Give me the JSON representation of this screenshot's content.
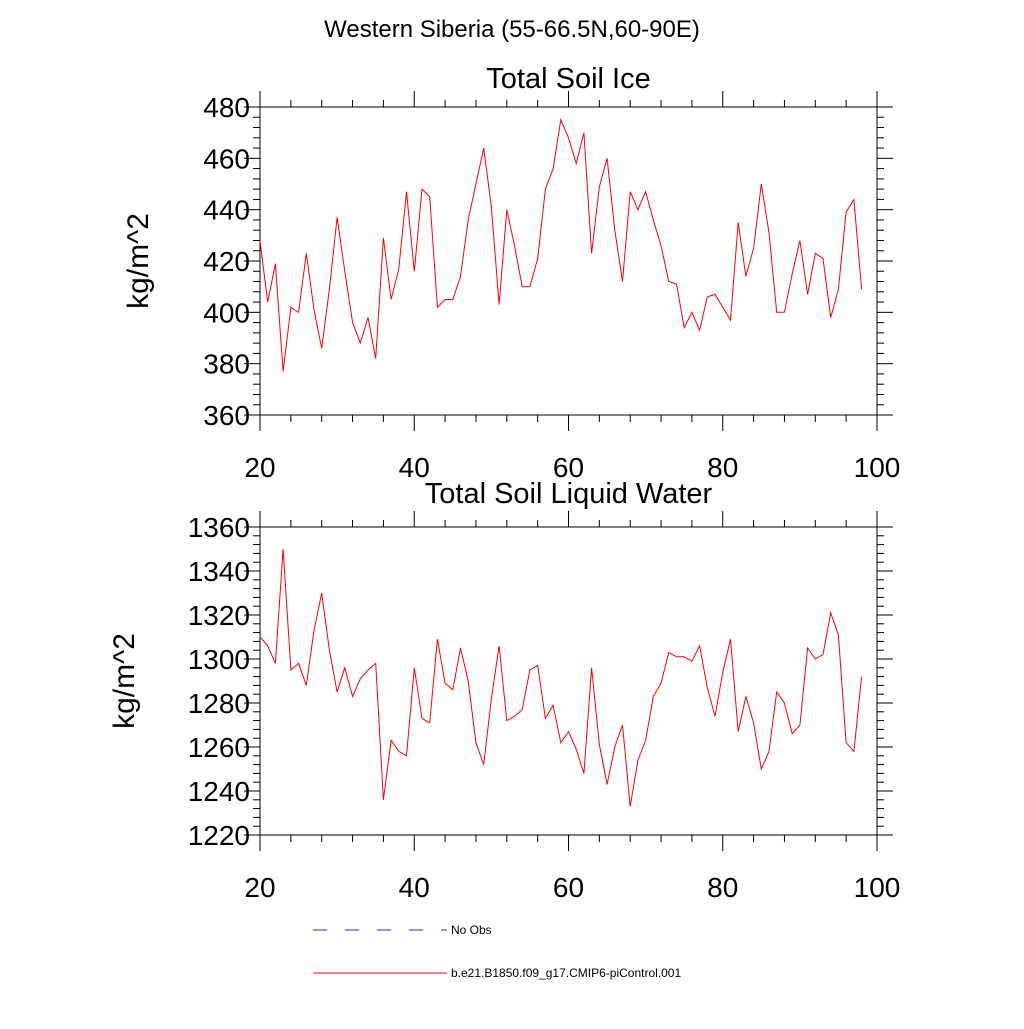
{
  "main_title": "Western Siberia (55-66.5N,60-90E)",
  "colors": {
    "model": "#ff0000",
    "obs": "#1f3a93",
    "axis": "#000000"
  },
  "legend": {
    "items": [
      {
        "label": "No Obs",
        "style": "dashed",
        "color": "#1f3a93"
      },
      {
        "label": "b.e21.B1850.f09_g17.CMIP6-piControl.001",
        "style": "solid",
        "color": "#ff0000"
      }
    ]
  },
  "chart_data": [
    {
      "type": "line",
      "title": "Total Soil Ice",
      "xlabel": "",
      "ylabel": "kg/m^2",
      "xlim": [
        20,
        100
      ],
      "ylim": [
        360,
        480
      ],
      "x_ticks": [
        20,
        40,
        60,
        80,
        100
      ],
      "y_ticks": [
        360,
        380,
        400,
        420,
        440,
        460,
        480
      ],
      "x_tick_labels": [
        "20",
        "40",
        "60",
        "80",
        "100"
      ],
      "y_tick_labels": [
        "360",
        "380",
        "400",
        "420",
        "440",
        "460",
        "480"
      ],
      "series": [
        {
          "name": "b.e21.B1850.f09_g17.CMIP6-piControl.001",
          "x": [
            20,
            21,
            22,
            23,
            24,
            25,
            26,
            27,
            28,
            29,
            30,
            31,
            32,
            33,
            34,
            35,
            36,
            37,
            38,
            39,
            40,
            41,
            42,
            43,
            44,
            45,
            46,
            47,
            48,
            49,
            50,
            51,
            52,
            53,
            54,
            55,
            56,
            57,
            58,
            59,
            60,
            61,
            62,
            63,
            64,
            65,
            66,
            67,
            68,
            69,
            70,
            71,
            72,
            73,
            74,
            75,
            76,
            77,
            78,
            79,
            80,
            81,
            82,
            83,
            84,
            85,
            86,
            87,
            88,
            89,
            90,
            91,
            92,
            93,
            94,
            95,
            96,
            97,
            98
          ],
          "values": [
            428,
            404,
            419,
            377,
            402,
            400,
            423,
            401,
            386,
            409,
            437,
            416,
            396,
            388,
            398,
            382,
            429,
            405,
            417,
            447,
            416,
            448,
            445,
            402,
            405,
            405,
            414,
            436,
            450,
            464,
            441,
            403,
            440,
            426,
            410,
            410,
            421,
            448,
            456,
            475,
            468,
            458,
            470,
            423,
            449,
            460,
            432,
            412,
            447,
            440,
            447,
            436,
            426,
            412,
            411,
            394,
            400,
            393,
            406,
            407,
            402,
            397,
            435,
            414,
            425,
            450,
            431,
            400,
            400,
            415,
            428,
            407,
            423,
            421,
            398,
            409,
            439,
            444,
            409
          ]
        }
      ]
    },
    {
      "type": "line",
      "title": "Total Soil Liquid Water",
      "xlabel": "",
      "ylabel": "kg/m^2",
      "xlim": [
        20,
        100
      ],
      "ylim": [
        1220,
        1360
      ],
      "x_ticks": [
        20,
        40,
        60,
        80,
        100
      ],
      "y_ticks": [
        1220,
        1240,
        1260,
        1280,
        1300,
        1320,
        1340,
        1360
      ],
      "x_tick_labels": [
        "20",
        "40",
        "60",
        "80",
        "100"
      ],
      "y_tick_labels": [
        "1220",
        "1240",
        "1260",
        "1280",
        "1300",
        "1320",
        "1340",
        "1360"
      ],
      "series": [
        {
          "name": "b.e21.B1850.f09_g17.CMIP6-piControl.001",
          "x": [
            20,
            21,
            22,
            23,
            24,
            25,
            26,
            27,
            28,
            29,
            30,
            31,
            32,
            33,
            34,
            35,
            36,
            37,
            38,
            39,
            40,
            41,
            42,
            43,
            44,
            45,
            46,
            47,
            48,
            49,
            50,
            51,
            52,
            53,
            54,
            55,
            56,
            57,
            58,
            59,
            60,
            61,
            62,
            63,
            64,
            65,
            66,
            67,
            68,
            69,
            70,
            71,
            72,
            73,
            74,
            75,
            76,
            77,
            78,
            79,
            80,
            81,
            82,
            83,
            84,
            85,
            86,
            87,
            88,
            89,
            90,
            91,
            92,
            93,
            94,
            95,
            96,
            97,
            98
          ],
          "values": [
            1310,
            1306,
            1298,
            1350,
            1295,
            1298,
            1288,
            1313,
            1330,
            1304,
            1285,
            1296,
            1283,
            1291,
            1295,
            1298,
            1236,
            1263,
            1258,
            1256,
            1296,
            1273,
            1271,
            1309,
            1289,
            1286,
            1305,
            1290,
            1262,
            1252,
            1282,
            1306,
            1272,
            1274,
            1277,
            1295,
            1297,
            1273,
            1279,
            1262,
            1267,
            1259,
            1248,
            1296,
            1261,
            1243,
            1260,
            1270,
            1233,
            1254,
            1263,
            1283,
            1289,
            1303,
            1301,
            1301,
            1299,
            1306,
            1287,
            1274,
            1294,
            1309,
            1267,
            1283,
            1271,
            1250,
            1258,
            1285,
            1280,
            1266,
            1270,
            1305,
            1300,
            1302,
            1321,
            1311,
            1262,
            1258,
            1292
          ]
        }
      ]
    }
  ]
}
